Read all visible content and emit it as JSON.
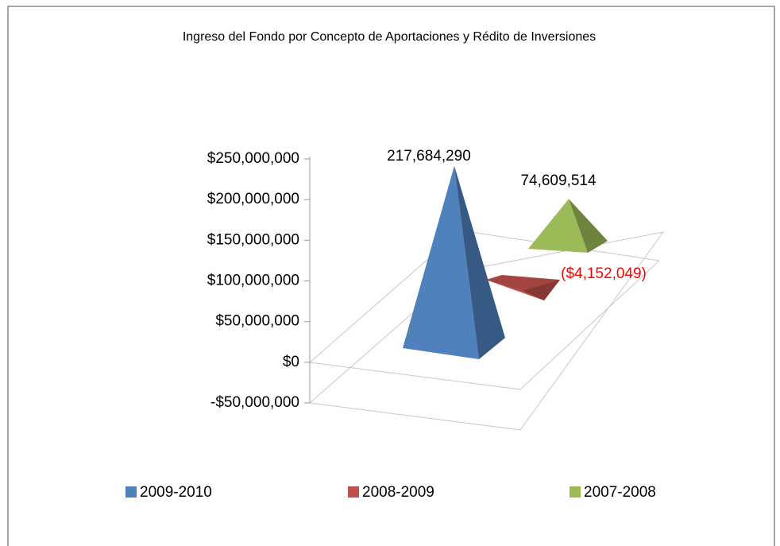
{
  "chart_data": {
    "type": "pyramid3d",
    "title": "Ingreso del Fondo por Concepto de Aportaciones y Rédito de Inversiones",
    "ylim": [
      -50000000,
      250000000
    ],
    "yticks": [
      {
        "value": -50000000,
        "label": "-$50,000,000"
      },
      {
        "value": 0,
        "label": "$0"
      },
      {
        "value": 50000000,
        "label": "$50,000,000"
      },
      {
        "value": 100000000,
        "label": "$100,000,000"
      },
      {
        "value": 150000000,
        "label": "$150,000,000"
      },
      {
        "value": 200000000,
        "label": "$200,000,000"
      },
      {
        "value": 250000000,
        "label": "$250,000,000"
      }
    ],
    "series": [
      {
        "name": "2009-2010",
        "color": "#4f81bd",
        "values": [
          217684290
        ],
        "value_labels": [
          "217,684,290"
        ]
      },
      {
        "name": "2008-2009",
        "color": "#c0504d",
        "values": [
          -4152049
        ],
        "value_labels": [
          "($4,152,049)"
        ]
      },
      {
        "name": "2007-2008",
        "color": "#9bbb59",
        "values": [
          74609514
        ],
        "value_labels": [
          "74,609,514"
        ]
      }
    ]
  }
}
